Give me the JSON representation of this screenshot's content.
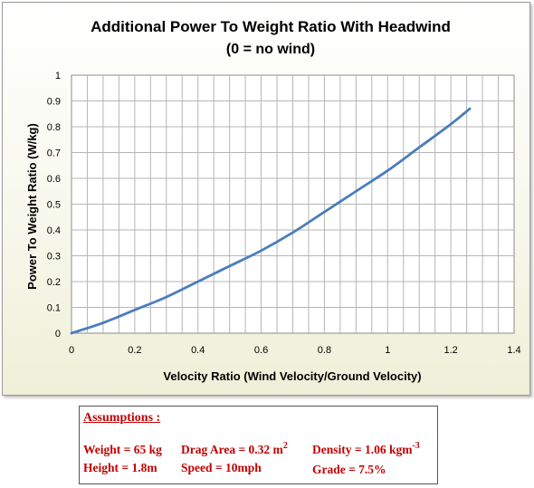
{
  "chart_data": {
    "type": "line",
    "title": "Additional Power To Weight Ratio With Headwind",
    "subtitle": "(0 = no wind)",
    "xlabel": "Velocity Ratio (Wind Velocity/Ground Velocity)",
    "ylabel": "Power To Weight Ratio (W/kg)",
    "xlim": [
      0,
      1.4
    ],
    "ylim": [
      0,
      1
    ],
    "x_ticks": [
      "0",
      "0.2",
      "0.4",
      "0.6",
      "0.8",
      "1",
      "1.2",
      "1.4"
    ],
    "y_ticks": [
      "0",
      "0.1",
      "0.2",
      "0.3",
      "0.4",
      "0.5",
      "0.6",
      "0.7",
      "0.8",
      "0.9",
      "1"
    ],
    "grid": true,
    "legend": "none",
    "series": [
      {
        "color": "#4a7ebb",
        "x": [
          0,
          0.1,
          0.2,
          0.3,
          0.4,
          0.5,
          0.6,
          0.7,
          0.8,
          0.9,
          1.0,
          1.1,
          1.2,
          1.26
        ],
        "y": [
          0,
          0.04,
          0.09,
          0.14,
          0.2,
          0.26,
          0.32,
          0.39,
          0.47,
          0.55,
          0.63,
          0.72,
          0.81,
          0.87
        ]
      }
    ]
  },
  "assumptions": {
    "heading": "Assumptions :",
    "weight": "Weight = 65 kg",
    "height": "Height = 1.8m",
    "drag_area": "Drag Area = 0.32 m",
    "drag_area_sup": "2",
    "speed": "Speed = 10mph",
    "density": "Density = 1.06 kgm",
    "density_sup": "-3",
    "grade": "Grade = 7.5%"
  }
}
